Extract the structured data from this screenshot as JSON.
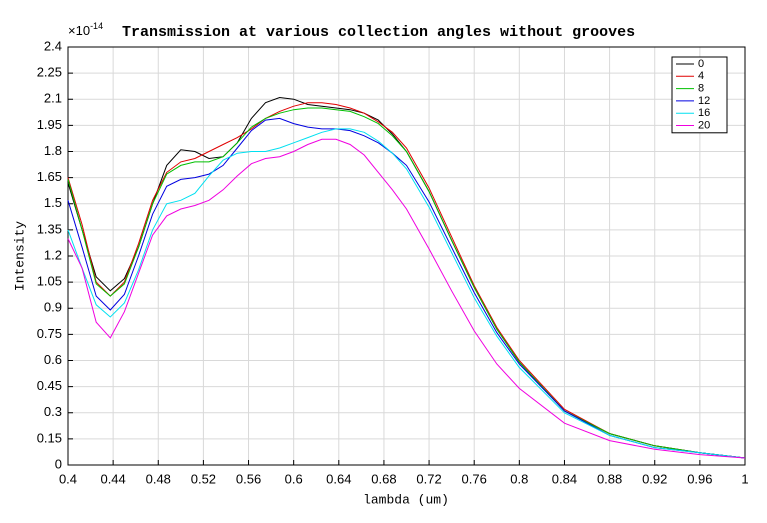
{
  "chart_data": {
    "type": "line",
    "title": "Transmission at various collection angles without grooves",
    "x_label": "lambda (um)",
    "y_label": "Intensity",
    "y_multiplier": "×10",
    "y_exponent": "-14",
    "x": [
      0.4,
      0.4125,
      0.425,
      0.4375,
      0.45,
      0.4625,
      0.475,
      0.4875,
      0.5,
      0.5125,
      0.525,
      0.5375,
      0.55,
      0.5625,
      0.575,
      0.5875,
      0.6,
      0.6125,
      0.625,
      0.6375,
      0.65,
      0.6625,
      0.675,
      0.6875,
      0.7,
      0.72,
      0.74,
      0.76,
      0.78,
      0.8,
      0.84,
      0.88,
      0.92,
      0.96,
      1.0
    ],
    "series": [
      {
        "name": "0",
        "color": "#000000",
        "values": [
          1.62,
          1.35,
          1.08,
          1.0,
          1.07,
          1.25,
          1.5,
          1.72,
          1.81,
          1.8,
          1.76,
          1.77,
          1.85,
          1.99,
          2.08,
          2.11,
          2.1,
          2.07,
          2.06,
          2.05,
          2.04,
          2.02,
          1.98,
          1.9,
          1.8,
          1.57,
          1.29,
          1.02,
          0.78,
          0.59,
          0.31,
          0.18,
          0.11,
          0.07,
          0.04
        ]
      },
      {
        "name": "4",
        "color": "#e00000",
        "values": [
          1.65,
          1.38,
          1.05,
          0.97,
          1.05,
          1.27,
          1.52,
          1.68,
          1.74,
          1.76,
          1.8,
          1.84,
          1.88,
          1.93,
          1.99,
          2.03,
          2.06,
          2.08,
          2.08,
          2.07,
          2.05,
          2.02,
          1.97,
          1.91,
          1.82,
          1.59,
          1.31,
          1.03,
          0.79,
          0.6,
          0.32,
          0.18,
          0.11,
          0.07,
          0.04
        ]
      },
      {
        "name": "8",
        "color": "#00c000",
        "values": [
          1.64,
          1.35,
          1.04,
          0.97,
          1.04,
          1.25,
          1.5,
          1.67,
          1.72,
          1.74,
          1.74,
          1.77,
          1.85,
          1.94,
          1.99,
          2.02,
          2.04,
          2.05,
          2.05,
          2.04,
          2.03,
          2.0,
          1.96,
          1.89,
          1.8,
          1.57,
          1.29,
          1.02,
          0.78,
          0.59,
          0.31,
          0.18,
          0.11,
          0.07,
          0.04
        ]
      },
      {
        "name": "12",
        "color": "#0000e0",
        "values": [
          1.52,
          1.25,
          0.97,
          0.89,
          0.98,
          1.2,
          1.44,
          1.6,
          1.64,
          1.65,
          1.67,
          1.72,
          1.82,
          1.92,
          1.98,
          1.99,
          1.96,
          1.94,
          1.93,
          1.93,
          1.92,
          1.89,
          1.85,
          1.79,
          1.72,
          1.51,
          1.25,
          0.99,
          0.76,
          0.58,
          0.31,
          0.17,
          0.1,
          0.07,
          0.04
        ]
      },
      {
        "name": "16",
        "color": "#00e0f0",
        "values": [
          1.35,
          1.13,
          0.92,
          0.85,
          0.93,
          1.12,
          1.35,
          1.5,
          1.52,
          1.56,
          1.66,
          1.75,
          1.79,
          1.8,
          1.8,
          1.82,
          1.85,
          1.88,
          1.91,
          1.93,
          1.93,
          1.91,
          1.86,
          1.79,
          1.7,
          1.48,
          1.22,
          0.96,
          0.74,
          0.56,
          0.3,
          0.17,
          0.1,
          0.07,
          0.04
        ]
      },
      {
        "name": "20",
        "color": "#f000e0",
        "values": [
          1.3,
          1.13,
          0.82,
          0.73,
          0.88,
          1.1,
          1.32,
          1.43,
          1.47,
          1.49,
          1.52,
          1.58,
          1.66,
          1.73,
          1.76,
          1.77,
          1.8,
          1.84,
          1.87,
          1.87,
          1.84,
          1.78,
          1.68,
          1.58,
          1.47,
          1.24,
          1.0,
          0.77,
          0.58,
          0.44,
          0.24,
          0.14,
          0.09,
          0.06,
          0.04
        ]
      }
    ],
    "xlim": [
      0.4,
      1
    ],
    "ylim": [
      0,
      2.4
    ],
    "xticks": [
      0.4,
      0.44,
      0.48,
      0.52,
      0.56,
      0.6,
      0.64,
      0.68,
      0.72,
      0.76,
      0.8,
      0.84,
      0.88,
      0.92,
      0.96,
      1
    ],
    "yticks": [
      0,
      0.15,
      0.3,
      0.45,
      0.6,
      0.75,
      0.9,
      1.05,
      1.2,
      1.35,
      1.5,
      1.65,
      1.8,
      1.95,
      2.1,
      2.25,
      2.4
    ],
    "grid": true,
    "legend_position": "northeast"
  }
}
